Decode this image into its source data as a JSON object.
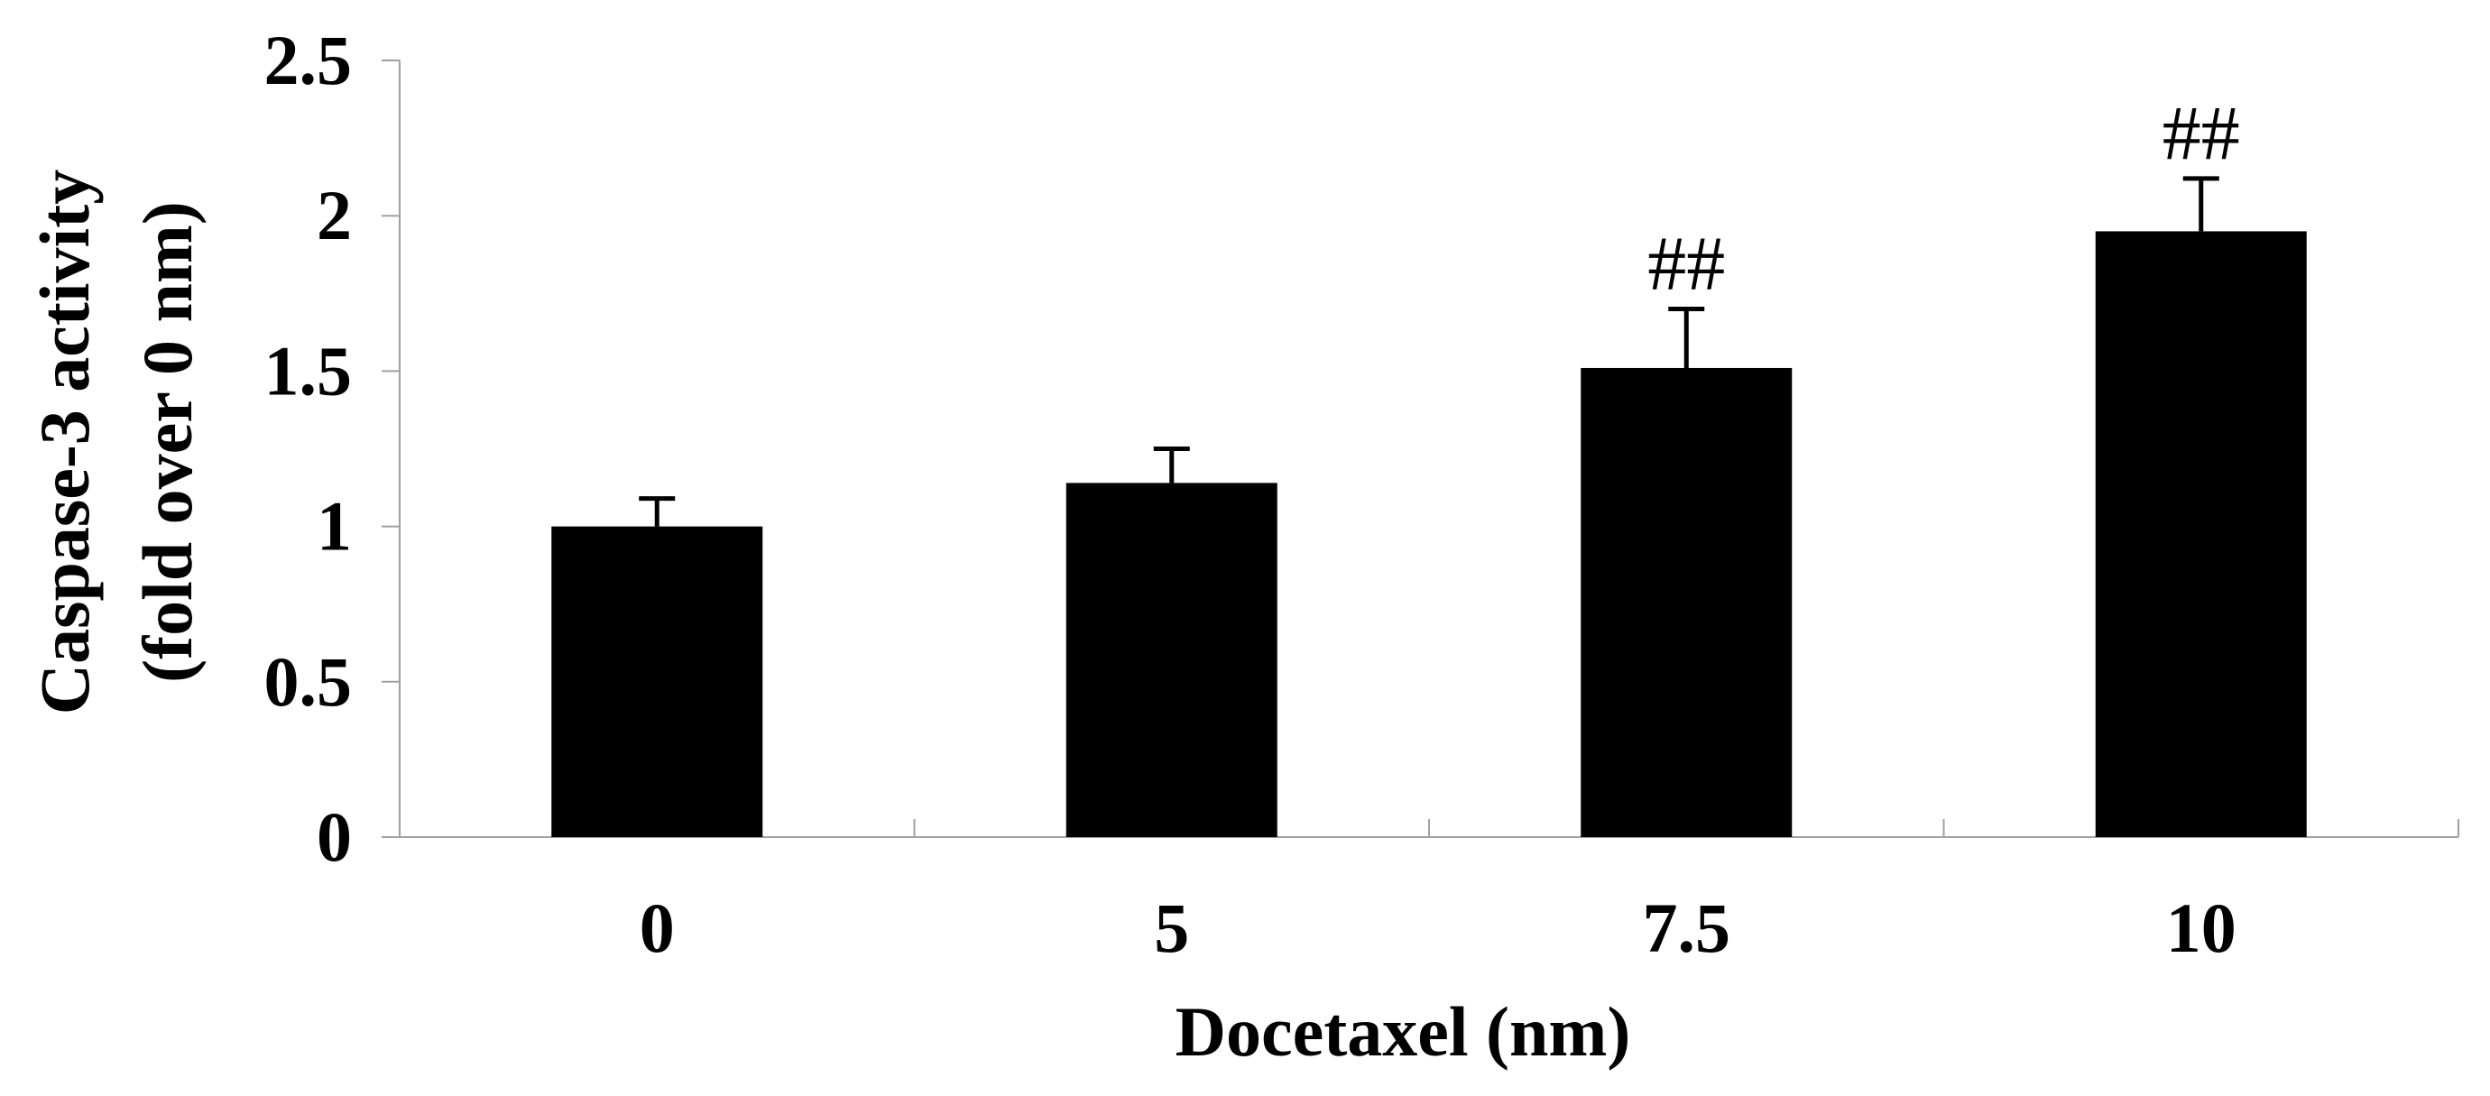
{
  "chart_data": {
    "type": "bar",
    "categories": [
      "0",
      "5",
      "7.5",
      "10"
    ],
    "values": [
      1.0,
      1.14,
      1.51,
      1.95
    ],
    "errors": [
      0.09,
      0.11,
      0.19,
      0.17
    ],
    "annotations": [
      "",
      "",
      "##",
      "##"
    ],
    "ylim": [
      0,
      2.5
    ],
    "yticks": [
      0,
      0.5,
      1,
      1.5,
      2,
      2.5
    ],
    "ytick_labels": [
      "0",
      "0.5",
      "1",
      "1.5",
      "2",
      "2.5"
    ],
    "xlabel": "Docetaxel (nm)",
    "ylabel_line1": "Caspase-3 activity",
    "ylabel_line2": "(fold over 0 nm)",
    "bar_color": "#000000",
    "axis_color": "#a0a0a0",
    "grid": false
  }
}
